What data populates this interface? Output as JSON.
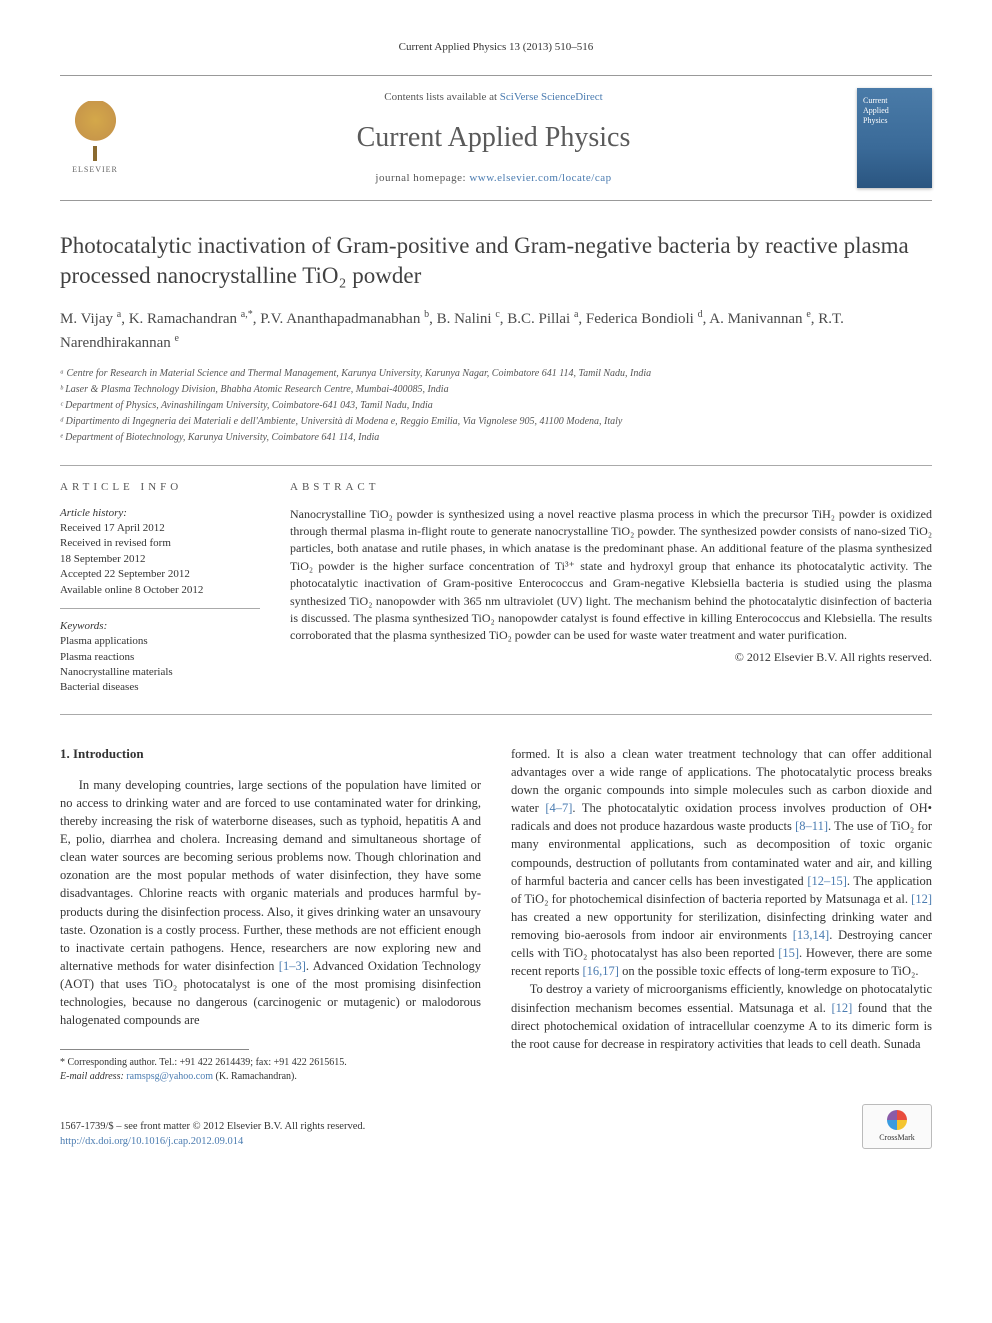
{
  "header_meta": "Current Applied Physics 13 (2013) 510–516",
  "masthead": {
    "elsevier": "ELSEVIER",
    "contents_prefix": "Contents lists available at ",
    "sciverse": "SciVerse ScienceDirect",
    "journal_name": "Current Applied Physics",
    "homepage_prefix": "journal homepage: ",
    "homepage_url": "www.elsevier.com/locate/cap",
    "cover_line1": "Current",
    "cover_line2": "Applied",
    "cover_line3": "Physics"
  },
  "title": "Photocatalytic inactivation of Gram-positive and Gram-negative bacteria by reactive plasma processed nanocrystalline TiO₂ powder",
  "authors_html": "M. Vijay <sup>a</sup>, K. Ramachandran <sup>a,*</sup>, P.V. Ananthapadmanabhan <sup>b</sup>, B. Nalini <sup>c</sup>, B.C. Pillai <sup>a</sup>, Federica Bondioli <sup>d</sup>, A. Manivannan <sup>e</sup>, R.T. Narendhirakannan <sup>e</sup>",
  "affiliations": [
    "ᵃ Centre for Research in Material Science and Thermal Management, Karunya University, Karunya Nagar, Coimbatore 641 114, Tamil Nadu, India",
    "ᵇ Laser & Plasma Technology Division, Bhabha Atomic Research Centre, Mumbai-400085, India",
    "ᶜ Department of Physics, Avinashilingam University, Coimbatore-641 043, Tamil Nadu, India",
    "ᵈ Dipartimento di Ingegneria dei Materiali e dell'Ambiente, Università di Modena e, Reggio Emilia, Via Vignolese 905, 41100 Modena, Italy",
    "ᵉ Department of Biotechnology, Karunya University, Coimbatore 641 114, India"
  ],
  "info": {
    "heading": "ARTICLE INFO",
    "history_label": "Article history:",
    "history": [
      "Received 17 April 2012",
      "Received in revised form",
      "18 September 2012",
      "Accepted 22 September 2012",
      "Available online 8 October 2012"
    ],
    "keywords_label": "Keywords:",
    "keywords": [
      "Plasma applications",
      "Plasma reactions",
      "Nanocrystalline materials",
      "Bacterial diseases"
    ]
  },
  "abstract": {
    "heading": "ABSTRACT",
    "text": "Nanocrystalline TiO₂ powder is synthesized using a novel reactive plasma process in which the precursor TiH₂ powder is oxidized through thermal plasma in-flight route to generate nanocrystalline TiO₂ powder. The synthesized powder consists of nano-sized TiO₂ particles, both anatase and rutile phases, in which anatase is the predominant phase. An additional feature of the plasma synthesized TiO₂ powder is the higher surface concentration of Ti³⁺ state and hydroxyl group that enhance its photocatalytic activity. The photocatalytic inactivation of Gram-positive Enterococcus and Gram-negative Klebsiella bacteria is studied using the plasma synthesized TiO₂ nanopowder with 365 nm ultraviolet (UV) light. The mechanism behind the photocatalytic disinfection of bacteria is discussed. The plasma synthesized TiO₂ nanopowder catalyst is found effective in killing Enterococcus and Klebsiella. The results corroborated that the plasma synthesized TiO₂ powder can be used for waste water treatment and water purification.",
    "copyright": "© 2012 Elsevier B.V. All rights reserved."
  },
  "body": {
    "section_heading": "1. Introduction",
    "col1_p1": "In many developing countries, large sections of the population have limited or no access to drinking water and are forced to use contaminated water for drinking, thereby increasing the risk of waterborne diseases, such as typhoid, hepatitis A and E, polio, diarrhea and cholera. Increasing demand and simultaneous shortage of clean water sources are becoming serious problems now. Though chlorination and ozonation are the most popular methods of water disinfection, they have some disadvantages. Chlorine reacts with organic materials and produces harmful by-products during the disinfection process. Also, it gives drinking water an unsavoury taste. Ozonation is a costly process. Further, these methods are not efficient enough to inactivate certain pathogens. Hence, researchers are now exploring new and alternative methods for water disinfection ",
    "col1_ref1": "[1–3]",
    "col1_p1b": ". Advanced Oxidation Technology (AOT) that uses TiO₂ photocatalyst is one of the most promising disinfection technologies, because no dangerous (carcinogenic or mutagenic) or malodorous halogenated compounds are",
    "col2_p1a": "formed. It is also a clean water treatment technology that can offer additional advantages over a wide range of applications. The photocatalytic process breaks down the organic compounds into simple molecules such as carbon dioxide and water ",
    "col2_ref1": "[4–7]",
    "col2_p1b": ". The photocatalytic oxidation process involves production of OH• radicals and does not produce hazardous waste products ",
    "col2_ref2": "[8–11]",
    "col2_p1c": ". The use of TiO₂ for many environmental applications, such as decomposition of toxic organic compounds, destruction of pollutants from contaminated water and air, and killing of harmful bacteria and cancer cells has been investigated ",
    "col2_ref3": "[12–15]",
    "col2_p1d": ". The application of TiO₂ for photochemical disinfection of bacteria reported by Matsunaga et al. ",
    "col2_ref4": "[12]",
    "col2_p1e": " has created a new opportunity for sterilization, disinfecting drinking water and removing bio-aerosols from indoor air environments ",
    "col2_ref5": "[13,14]",
    "col2_p1f": ". Destroying cancer cells with TiO₂ photocatalyst has also been reported ",
    "col2_ref6": "[15]",
    "col2_p1g": ". However, there are some recent reports ",
    "col2_ref7": "[16,17]",
    "col2_p1h": " on the possible toxic effects of long-term exposure to TiO₂.",
    "col2_p2a": "To destroy a variety of microorganisms efficiently, knowledge on photocatalytic disinfection mechanism becomes essential. Matsunaga et al. ",
    "col2_ref8": "[12]",
    "col2_p2b": " found that the direct photochemical oxidation of intracellular coenzyme A to its dimeric form is the root cause for decrease in respiratory activities that leads to cell death. Sunada"
  },
  "footnote": {
    "corr": "* Corresponding author. Tel.: +91 422 2614439; fax: +91 422 2615615.",
    "email_label": "E-mail address: ",
    "email": "ramspsg@yahoo.com",
    "email_who": " (K. Ramachandran)."
  },
  "footer": {
    "issn_line": "1567-1739/$ – see front matter © 2012 Elsevier B.V. All rights reserved.",
    "doi": "http://dx.doi.org/10.1016/j.cap.2012.09.014",
    "crossmark": "CrossMark"
  },
  "colors": {
    "link": "#4a7bb0",
    "text": "#333333",
    "heading": "#414141"
  }
}
